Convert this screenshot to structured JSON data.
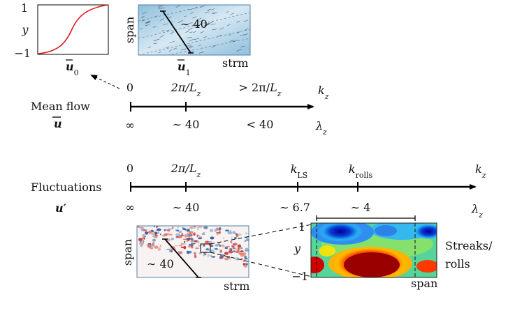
{
  "panels": {
    "u0": {
      "label": "ū0",
      "y_label": "y",
      "y_top": "1",
      "y_bottom": "−1",
      "curve_color": "#dd1c1c"
    },
    "u1": {
      "label": "ū1",
      "span_label": "span",
      "strm_label": "strm",
      "scale_label": "∼ 40"
    }
  },
  "mean_flow": {
    "title": "Mean flow",
    "symbol": "ū",
    "axis_right_label": "kz",
    "axis_right_lambda": "λz",
    "ticks": [
      {
        "k": "0",
        "lambda": "∞"
      },
      {
        "k": "2π/Lz",
        "lambda": "∼ 40"
      },
      {
        "k": "> 2π/Lz",
        "lambda": "< 40"
      }
    ]
  },
  "fluctuations": {
    "title": "Fluctuations",
    "symbol": "u′",
    "axis_right_label": "kz",
    "axis_right_lambda": "λz",
    "ticks": [
      {
        "k": "0",
        "lambda": "∞"
      },
      {
        "k": "2π/Lz",
        "lambda": "∼ 40"
      },
      {
        "k": "kLS",
        "lambda": "∼ 6.7"
      },
      {
        "k": "krolls",
        "lambda": "∼ 4"
      }
    ]
  },
  "snapshot": {
    "span_label": "span",
    "strm_label": "strm",
    "scale_label": "∼ 40"
  },
  "crosssection": {
    "y_label": "y",
    "y_top": "1",
    "y_bottom": "−1",
    "span_label": "span",
    "caption_line1": "Streaks/",
    "caption_line2": "rolls"
  },
  "colors": {
    "u1_bg": "#a9cde2",
    "axis": "#000000",
    "blue": "#1e3fbf",
    "red": "#b00000"
  }
}
